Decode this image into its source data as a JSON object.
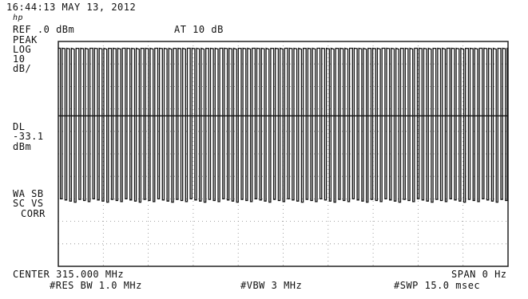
{
  "header": {
    "timestamp": "16:44:13 MAY 13, 2012",
    "logo": "hp",
    "ref_level": "REF .0 dBm",
    "attenuation": "AT 10 dB"
  },
  "left_panel": {
    "detector": "PEAK",
    "scale_mode": "LOG",
    "scale_value": "10",
    "scale_unit": "dB/",
    "display_line_label": "DL",
    "display_line_value": "-33.1",
    "display_line_unit": "dBm",
    "annotation_1": "WA SB",
    "annotation_2": "SC VS",
    "annotation_3": "CORR"
  },
  "footer": {
    "center": "CENTER 315.000 MHz",
    "span": "SPAN 0 Hz",
    "rbw": "#RES BW 1.0 MHz",
    "vbw": "#VBW 3 MHz",
    "sweep": "#SWP 15.0 msec"
  },
  "chart_data": {
    "type": "line",
    "xlabel": "",
    "ylabel": "",
    "ylim": [
      -100,
      0
    ],
    "grid": true,
    "display_line_dbm": -33.1,
    "trace_high_dbm": -3,
    "trace_low_dbm": -70,
    "pulse_count": 97
  },
  "colors": {
    "trace": "#111111",
    "grid": "#888888",
    "background": "#ffffff"
  }
}
